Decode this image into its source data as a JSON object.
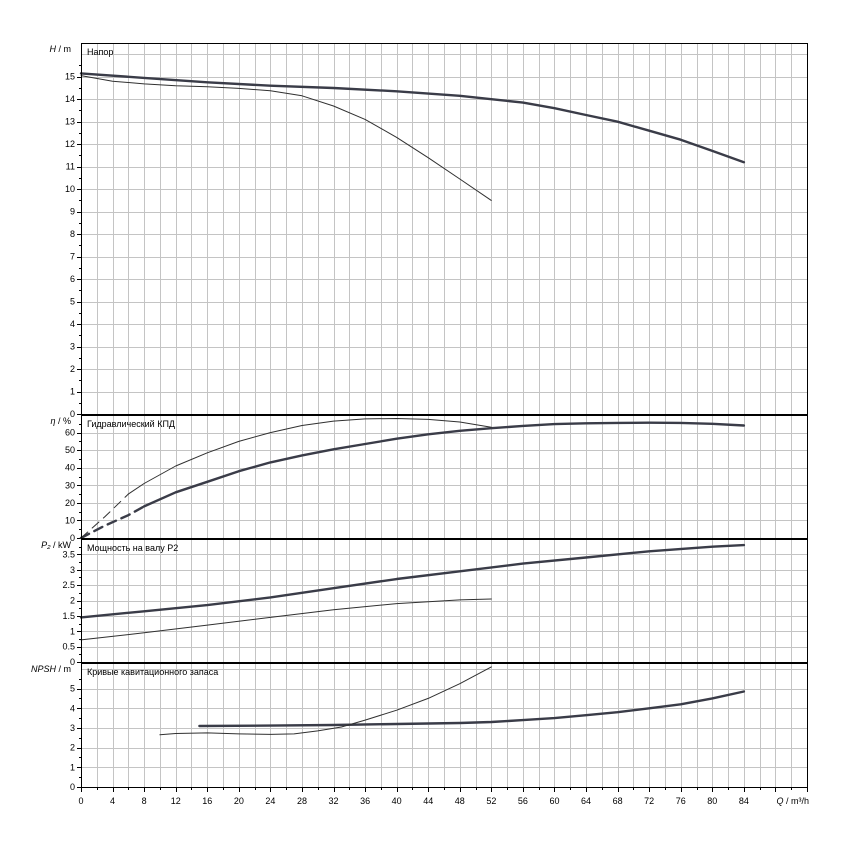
{
  "chart_data": [
    {
      "type": "line",
      "panel": "head",
      "title": "Напор",
      "ylabel_symbol": "H",
      "ylabel_unit": "m",
      "ylim": [
        0,
        16.5
      ],
      "yticks": [
        0,
        1,
        2,
        3,
        4,
        5,
        6,
        7,
        8,
        9,
        10,
        11,
        12,
        13,
        14,
        15
      ],
      "grid": true,
      "series": [
        {
          "style": "thick",
          "x": [
            0,
            8,
            16,
            24,
            32,
            40,
            48,
            52,
            56,
            60,
            64,
            68,
            72,
            76,
            80,
            84
          ],
          "y": [
            15.15,
            14.95,
            14.75,
            14.6,
            14.5,
            14.35,
            14.15,
            14.0,
            13.85,
            13.6,
            13.3,
            13.0,
            12.6,
            12.2,
            11.7,
            11.2
          ]
        },
        {
          "style": "thin",
          "x": [
            0,
            4,
            8,
            12,
            16,
            20,
            24,
            28,
            32,
            36,
            40,
            44,
            48,
            52
          ],
          "y": [
            15.05,
            14.8,
            14.68,
            14.6,
            14.55,
            14.48,
            14.38,
            14.15,
            13.7,
            13.1,
            12.3,
            11.4,
            10.45,
            9.5
          ]
        }
      ]
    },
    {
      "type": "line",
      "panel": "efficiency",
      "title": "Гидравлический КПД",
      "ylabel_symbol": "η",
      "ylabel_unit": "%",
      "ylim": [
        0,
        70
      ],
      "yticks": [
        0,
        10,
        20,
        30,
        40,
        50,
        60
      ],
      "grid": true,
      "series": [
        {
          "style": "thick",
          "x": [
            8,
            12,
            16,
            20,
            24,
            28,
            32,
            36,
            40,
            44,
            48,
            52,
            56,
            60,
            64,
            68,
            72,
            76,
            80,
            84
          ],
          "y": [
            18,
            26,
            32,
            38,
            43,
            47,
            50.5,
            53.5,
            56.5,
            59,
            61,
            62.5,
            63.8,
            64.8,
            65.3,
            65.5,
            65.6,
            65.5,
            65,
            64
          ]
        },
        {
          "style": "thick-dashed",
          "x": [
            0,
            3,
            6,
            8
          ],
          "y": [
            0,
            7,
            13,
            18
          ]
        },
        {
          "style": "thin",
          "x": [
            6,
            8,
            12,
            16,
            20,
            24,
            28,
            32,
            36,
            40,
            44,
            48,
            52
          ],
          "y": [
            25,
            31,
            41,
            48.5,
            55,
            60,
            64,
            66.5,
            67.8,
            68,
            67.5,
            66,
            63
          ]
        },
        {
          "style": "thin-dashed",
          "x": [
            0,
            3,
            6
          ],
          "y": [
            0,
            12,
            25
          ]
        }
      ]
    },
    {
      "type": "line",
      "panel": "power",
      "title": "Мощность на валу P2",
      "ylabel_symbol": "P₂",
      "ylabel_unit": "kW",
      "ylim": [
        0,
        4
      ],
      "yticks": [
        0,
        0.5,
        1,
        1.5,
        2,
        2.5,
        3,
        3.5
      ],
      "grid": true,
      "series": [
        {
          "style": "thick",
          "x": [
            0,
            8,
            16,
            24,
            32,
            40,
            48,
            56,
            64,
            72,
            80,
            84
          ],
          "y": [
            1.45,
            1.65,
            1.85,
            2.1,
            2.4,
            2.7,
            2.95,
            3.2,
            3.4,
            3.6,
            3.75,
            3.8
          ]
        },
        {
          "style": "thin",
          "x": [
            0,
            8,
            16,
            24,
            32,
            40,
            48,
            52
          ],
          "y": [
            0.72,
            0.95,
            1.2,
            1.45,
            1.7,
            1.9,
            2.02,
            2.05
          ]
        }
      ]
    },
    {
      "type": "line",
      "panel": "npsh",
      "title": "Кривые кавитационного запаса",
      "ylabel_symbol": "NPSH",
      "ylabel_unit": "m",
      "ylim": [
        0,
        6.3
      ],
      "yticks": [
        0,
        1,
        2,
        3,
        4,
        5
      ],
      "grid": true,
      "series": [
        {
          "style": "thick",
          "x": [
            15,
            24,
            32,
            40,
            48,
            52,
            56,
            60,
            64,
            68,
            72,
            76,
            80,
            84
          ],
          "y": [
            3.1,
            3.12,
            3.15,
            3.2,
            3.25,
            3.3,
            3.4,
            3.5,
            3.65,
            3.8,
            4.0,
            4.2,
            4.5,
            4.85
          ]
        },
        {
          "style": "thin",
          "x": [
            10,
            12,
            16,
            20,
            24,
            27,
            30,
            33,
            36,
            40,
            44,
            48,
            52
          ],
          "y": [
            2.65,
            2.72,
            2.75,
            2.7,
            2.67,
            2.7,
            2.85,
            3.05,
            3.4,
            3.9,
            4.5,
            5.25,
            6.1
          ]
        }
      ]
    }
  ],
  "x_axis": {
    "symbol": "Q",
    "unit": "m³/h",
    "xlim": [
      0,
      92
    ],
    "ticks": [
      0,
      4,
      8,
      12,
      16,
      20,
      24,
      28,
      32,
      36,
      40,
      44,
      48,
      52,
      56,
      60,
      64,
      68,
      72,
      76,
      80,
      84
    ]
  }
}
